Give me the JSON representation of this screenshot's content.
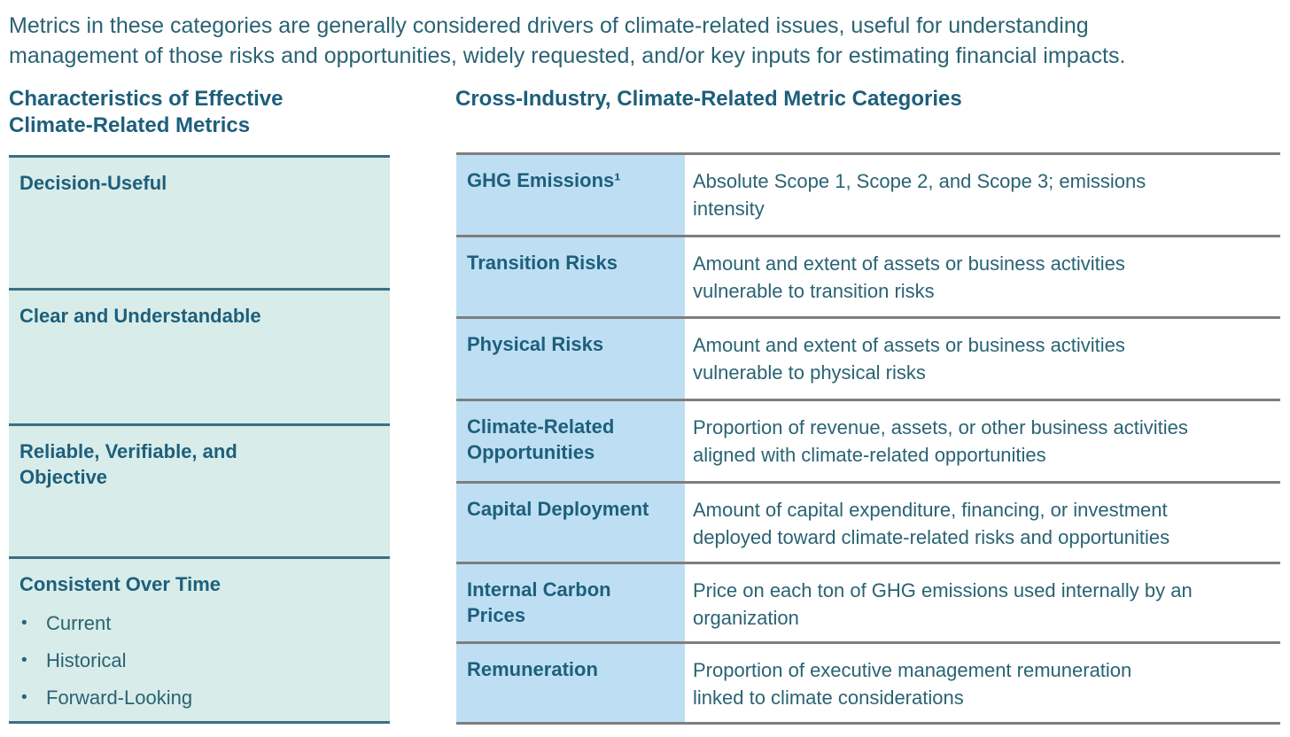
{
  "intro": {
    "lines": [
      "Metrics in these categories are generally considered drivers of climate-related issues, useful for understanding",
      "management of those risks and opportunities, widely requested, and/or key inputs for estimating financial impacts."
    ]
  },
  "left_panel": {
    "title_lines": [
      "Characteristics of Effective",
      "Climate-Related Metrics"
    ],
    "sections": [
      {
        "label_lines": [
          "Decision-Useful"
        ]
      },
      {
        "label_lines": [
          "Clear and Understandable"
        ]
      },
      {
        "label_lines": [
          "Reliable, Verifiable, and",
          "Objective"
        ]
      },
      {
        "label_lines": [
          "Consistent Over Time"
        ],
        "bullet_icon": "•",
        "bullets": [
          "Current",
          "Historical",
          "Forward-Looking"
        ]
      }
    ]
  },
  "right_panel": {
    "title": "Cross-Industry, Climate-Related Metric Categories",
    "rows": [
      {
        "category_lines": [
          "GHG Emissions¹"
        ],
        "desc_lines": [
          "Absolute Scope 1, Scope 2, and Scope 3; emissions",
          "intensity"
        ]
      },
      {
        "category_lines": [
          "Transition Risks"
        ],
        "desc_lines": [
          "Amount and extent of assets or business activities",
          "vulnerable to transition risks"
        ]
      },
      {
        "category_lines": [
          "Physical Risks"
        ],
        "desc_lines": [
          "Amount and extent of assets or business activities",
          "vulnerable to physical risks"
        ]
      },
      {
        "category_lines": [
          "Climate-Related",
          "Opportunities"
        ],
        "desc_lines": [
          "Proportion of revenue, assets, or other business activities",
          "aligned with climate-related opportunities"
        ]
      },
      {
        "category_lines": [
          "Capital Deployment"
        ],
        "desc_lines": [
          "Amount of capital expenditure, financing, or investment",
          "deployed toward climate-related risks and opportunities"
        ]
      },
      {
        "category_lines": [
          "Internal Carbon",
          "Prices"
        ],
        "desc_lines": [
          "Price on each ton of GHG emissions used internally by an",
          "organization"
        ]
      },
      {
        "category_lines": [
          "Remuneration"
        ],
        "desc_lines": [
          "Proportion of executive management remuneration",
          "linked to climate considerations"
        ]
      }
    ]
  },
  "colors": {
    "body_text": "#2a6373",
    "heading_text": "#1d5f7c",
    "left_cell_fill": "#d8ece9",
    "left_divider": "#3c6e85",
    "category_cell_fill": "#bedff3",
    "row_divider": "#7e7e7e",
    "page_background": "#ffffff"
  }
}
